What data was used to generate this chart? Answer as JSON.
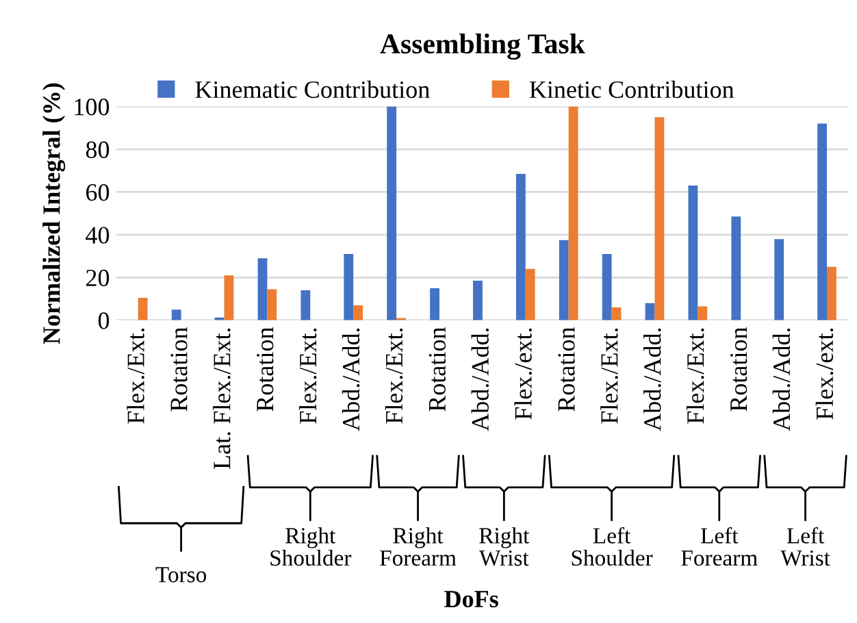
{
  "chart_data": {
    "type": "bar",
    "title": "Assembling Task",
    "xlabel": "DoFs",
    "ylabel": "Normalized Integral (%)",
    "categories": [
      "Flex./Ext.",
      "Rotation",
      "Lat. Flex./Ext.",
      "Rotation",
      "Flex./Ext.",
      "Abd./Add.",
      "Flex./Ext.",
      "Rotation",
      "Abd./Add.",
      "Flex./ext.",
      "Rotation",
      "Flex./Ext.",
      "Abd./Add.",
      "Flex./Ext.",
      "Rotation",
      "Abd./Add.",
      "Flex./ext."
    ],
    "series": [
      {
        "name": "Kinematic Contribution",
        "color": "#4472c4",
        "values": [
          0,
          5,
          1.3,
          29,
          14,
          31,
          100,
          15,
          18.5,
          68.5,
          37.5,
          31,
          8,
          63,
          48.5,
          38,
          92
        ]
      },
      {
        "name": "Kinetic Contribution",
        "color": "#ed7d31",
        "values": [
          10.5,
          0,
          21,
          14.5,
          0,
          7,
          1,
          0,
          0,
          24,
          100,
          6,
          95,
          6.5,
          0,
          0,
          25
        ]
      }
    ],
    "annotations": [
      "Torso",
      "Right\nShoulder",
      "Right\nForearm",
      "Right\nWrist",
      "Left\nShoulder",
      "Left\nForearm",
      "Left\nWrist"
    ],
    "ylim": [
      0,
      100
    ],
    "yticks": [
      0,
      20,
      40,
      60,
      80,
      100
    ],
    "grid": "y",
    "legend": "top"
  }
}
